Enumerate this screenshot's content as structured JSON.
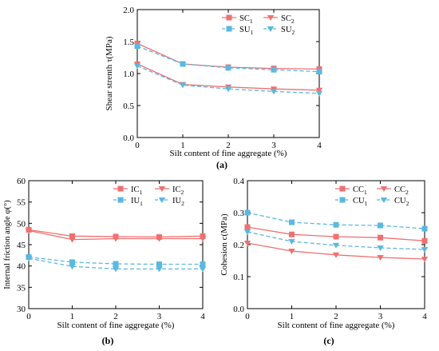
{
  "chart_data": [
    {
      "type": "line",
      "panel_label": "(a)",
      "xlabel": "Silt content of fine aggregate (%)",
      "ylabel": "Shear strenth  τ(MPa)",
      "x": [
        0,
        1,
        2,
        3,
        4
      ],
      "xlim": [
        0,
        4
      ],
      "ylim": [
        0.0,
        2.0
      ],
      "xticks": [
        "0",
        "1",
        "2",
        "3",
        "4"
      ],
      "yticks": [
        "0.0",
        "0.5",
        "1.0",
        "1.5",
        "2.0"
      ],
      "legend_position": "top-right",
      "series": [
        {
          "name": "SC",
          "sub": "1",
          "values": [
            1.47,
            1.15,
            1.1,
            1.08,
            1.07
          ],
          "color": "#f07070",
          "marker": "square",
          "dashed": false
        },
        {
          "name": "SC",
          "sub": "2",
          "values": [
            1.15,
            0.83,
            0.79,
            0.76,
            0.74
          ],
          "color": "#f07070",
          "marker": "triangle-down",
          "dashed": false
        },
        {
          "name": "SU",
          "sub": "1",
          "values": [
            1.43,
            1.15,
            1.09,
            1.06,
            1.03
          ],
          "color": "#5bb8e0",
          "marker": "square",
          "dashed": true
        },
        {
          "name": "SU",
          "sub": "2",
          "values": [
            1.12,
            0.82,
            0.76,
            0.72,
            0.69
          ],
          "color": "#5bb8e0",
          "marker": "triangle-down",
          "dashed": true
        }
      ]
    },
    {
      "type": "line",
      "panel_label": "(b)",
      "xlabel": "Silt content of fine aggregate (%)",
      "ylabel": "Internal friction angle φ(°)",
      "x": [
        0,
        1,
        2,
        3,
        4
      ],
      "xlim": [
        0,
        4
      ],
      "ylim": [
        30,
        60
      ],
      "xticks": [
        "0",
        "1",
        "2",
        "3",
        "4"
      ],
      "yticks": [
        "30",
        "35",
        "40",
        "45",
        "50",
        "55",
        "60"
      ],
      "legend_position": "top-right",
      "series": [
        {
          "name": "IC",
          "sub": "1",
          "values": [
            48.5,
            47.0,
            46.9,
            46.8,
            47.0
          ],
          "color": "#f07070",
          "marker": "square",
          "dashed": false
        },
        {
          "name": "IC",
          "sub": "2",
          "values": [
            48.3,
            46.2,
            46.4,
            46.4,
            46.4
          ],
          "color": "#f07070",
          "marker": "triangle-down",
          "dashed": false
        },
        {
          "name": "IU",
          "sub": "1",
          "values": [
            42.1,
            40.9,
            40.5,
            40.4,
            40.4
          ],
          "color": "#5bb8e0",
          "marker": "square",
          "dashed": true
        },
        {
          "name": "IU",
          "sub": "2",
          "values": [
            41.8,
            39.9,
            39.3,
            39.3,
            39.3
          ],
          "color": "#5bb8e0",
          "marker": "triangle-down",
          "dashed": true
        }
      ]
    },
    {
      "type": "line",
      "panel_label": "(c)",
      "xlabel": "Silt content of fine aggregate (%)",
      "ylabel": "Cohesion  c(MPa)",
      "x": [
        0,
        1,
        2,
        3,
        4
      ],
      "xlim": [
        0,
        4
      ],
      "ylim": [
        0.0,
        0.4
      ],
      "xticks": [
        "0",
        "1",
        "2",
        "3",
        "4"
      ],
      "yticks": [
        "0.0",
        "0.1",
        "0.2",
        "0.3",
        "0.4"
      ],
      "legend_position": "top-right",
      "series": [
        {
          "name": "CC",
          "sub": "1",
          "values": [
            0.255,
            0.232,
            0.225,
            0.222,
            0.212
          ],
          "color": "#f07070",
          "marker": "square",
          "dashed": false
        },
        {
          "name": "CC",
          "sub": "2",
          "values": [
            0.205,
            0.18,
            0.168,
            0.16,
            0.155
          ],
          "color": "#f07070",
          "marker": "triangle-down",
          "dashed": false
        },
        {
          "name": "CU",
          "sub": "1",
          "values": [
            0.3,
            0.27,
            0.262,
            0.26,
            0.25
          ],
          "color": "#5bb8e0",
          "marker": "square",
          "dashed": true
        },
        {
          "name": "CU",
          "sub": "2",
          "values": [
            0.24,
            0.21,
            0.198,
            0.19,
            0.185
          ],
          "color": "#5bb8e0",
          "marker": "triangle-down",
          "dashed": true
        }
      ]
    }
  ]
}
